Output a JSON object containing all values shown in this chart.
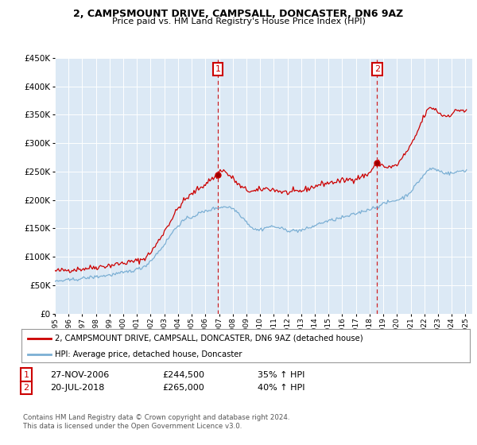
{
  "title": "2, CAMPSMOUNT DRIVE, CAMPSALL, DONCASTER, DN6 9AZ",
  "subtitle": "Price paid vs. HM Land Registry's House Price Index (HPI)",
  "legend_line1": "2, CAMPSMOUNT DRIVE, CAMPSALL, DONCASTER, DN6 9AZ (detached house)",
  "legend_line2": "HPI: Average price, detached house, Doncaster",
  "footer1": "Contains HM Land Registry data © Crown copyright and database right 2024.",
  "footer2": "This data is licensed under the Open Government Licence v3.0.",
  "annotation1": {
    "label": "1",
    "date": "27-NOV-2006",
    "price": "£244,500",
    "hpi": "35% ↑ HPI",
    "x_year": 2006.917
  },
  "annotation2": {
    "label": "2",
    "date": "20-JUL-2018",
    "price": "£265,000",
    "hpi": "40% ↑ HPI",
    "x_year": 2018.55
  },
  "red_color": "#cc0000",
  "blue_color": "#7bafd4",
  "background_color": "#dce9f5",
  "ylim": [
    0,
    450000
  ],
  "xlim_start": 1995.0,
  "xlim_end": 2025.5
}
